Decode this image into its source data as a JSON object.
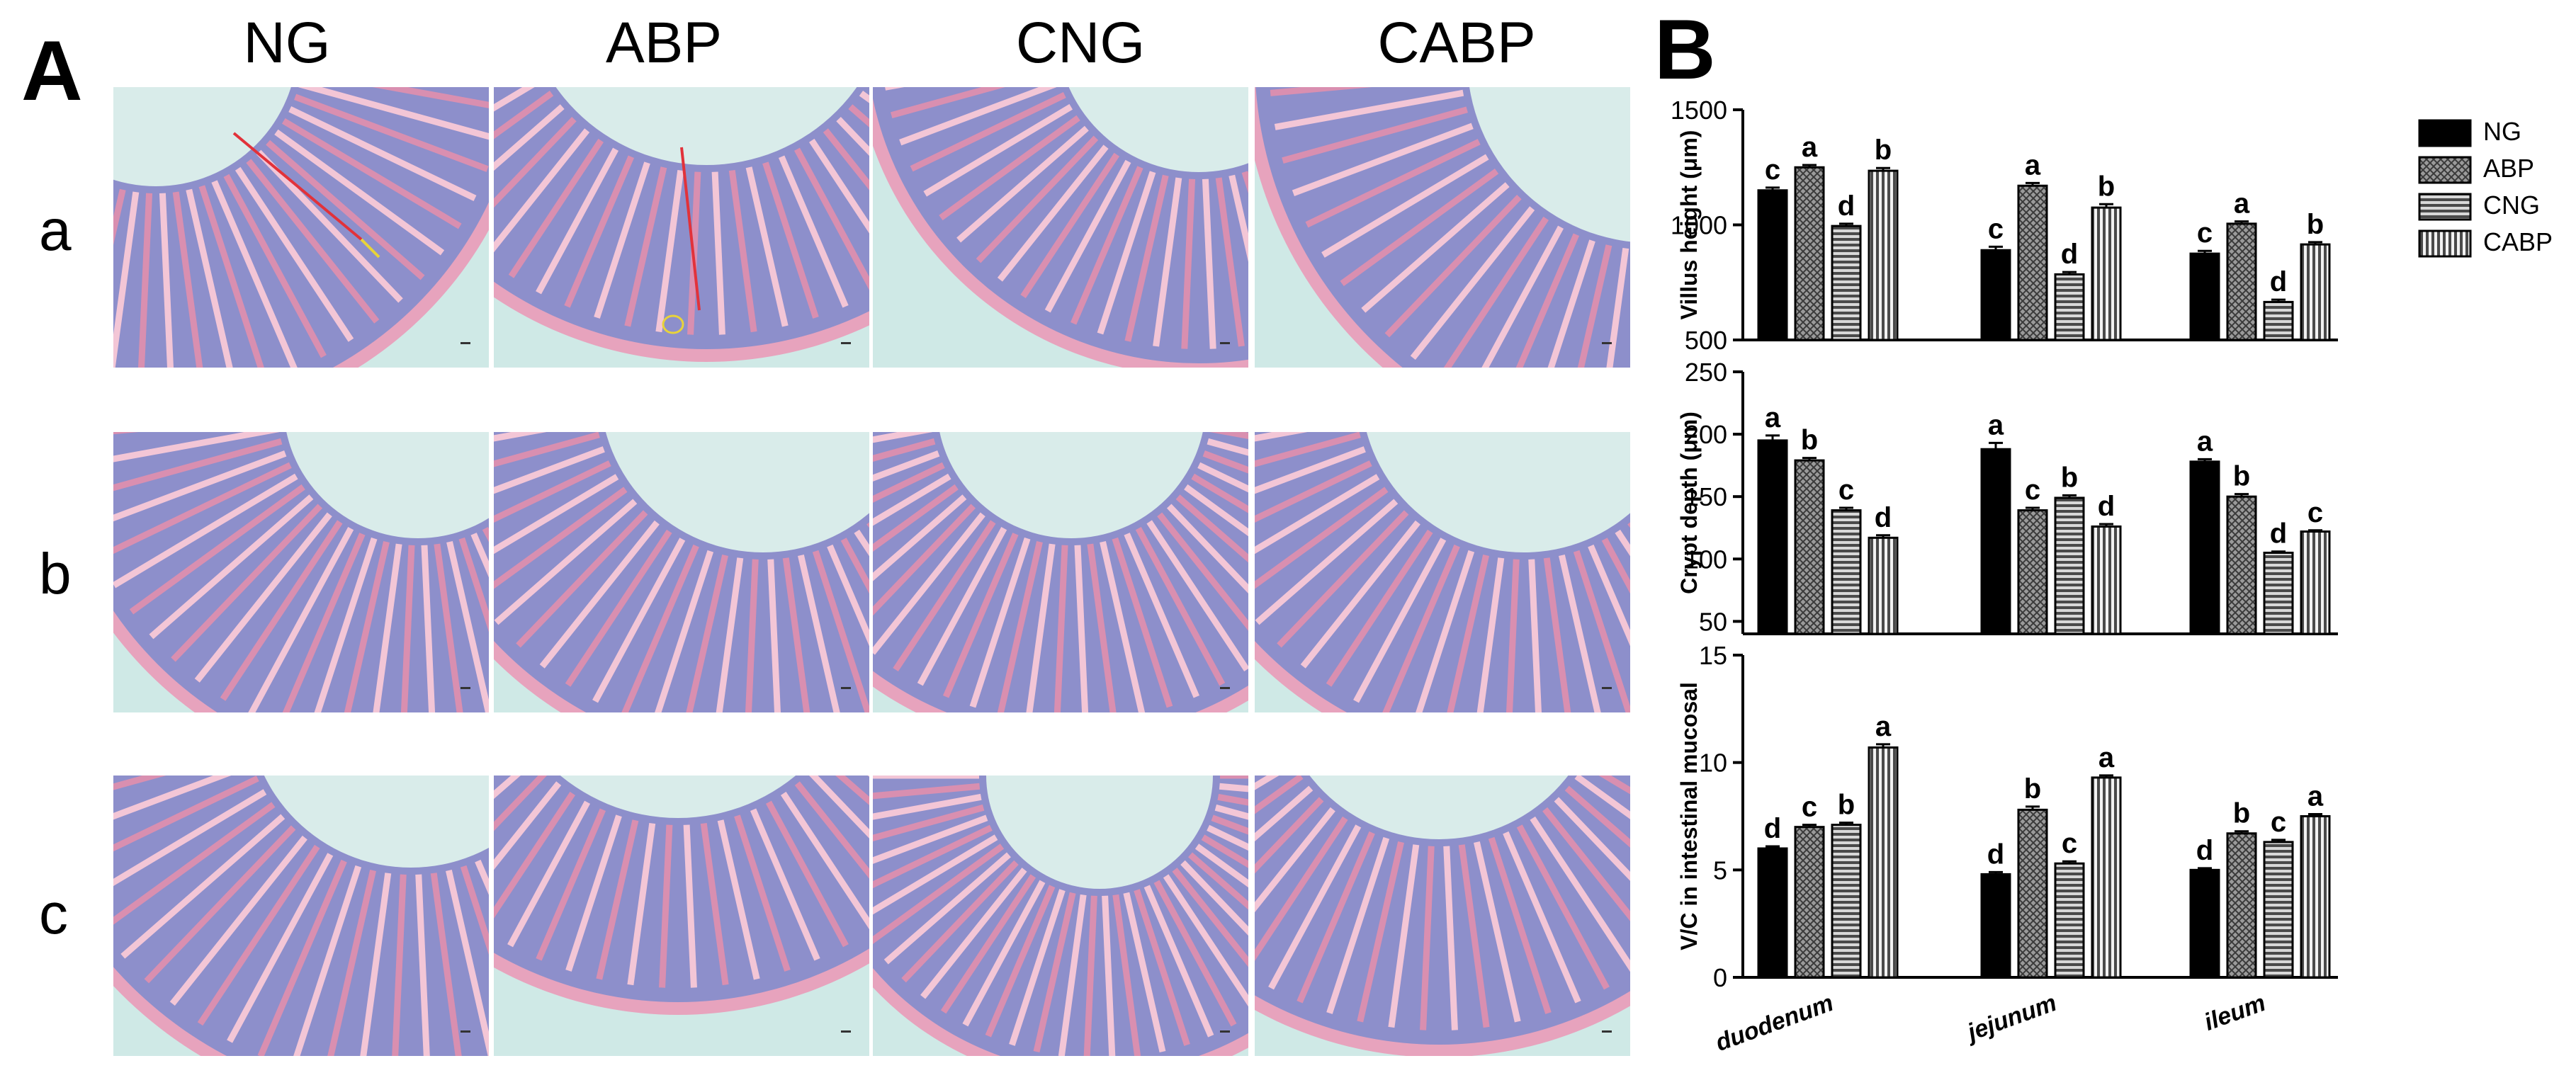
{
  "panel_a_label": "A",
  "panel_b_label": "B",
  "column_headers": [
    "NG",
    "ABP",
    "CNG",
    "CABP"
  ],
  "row_labels": [
    "a",
    "b",
    "c"
  ],
  "colors": {
    "tissue_pink": "#e7a3bd",
    "tissue_purple": "#8d8fcb",
    "background_teal": "#cfe9e6",
    "measure_red": "#e2323a",
    "measure_yellow": "#e8d33a"
  },
  "chart_data": [
    {
      "type": "bar",
      "categories": [
        "duodenum",
        "jejunum",
        "ileum"
      ],
      "ylabel": "Villus height (μm)",
      "ylim": [
        500,
        1500
      ],
      "yticks": [
        "500",
        "1000",
        "1500"
      ],
      "series": [
        {
          "name": "NG",
          "values": [
            1150,
            890,
            875
          ],
          "errors": [
            12,
            15,
            12
          ],
          "letters": [
            "c",
            "c",
            "c"
          ]
        },
        {
          "name": "ABP",
          "values": [
            1250,
            1170,
            1005
          ],
          "errors": [
            10,
            12,
            10
          ],
          "letters": [
            "a",
            "a",
            "a"
          ]
        },
        {
          "name": "CNG",
          "values": [
            995,
            785,
            665
          ],
          "errors": [
            10,
            10,
            10
          ],
          "letters": [
            "d",
            "d",
            "d"
          ]
        },
        {
          "name": "CABP",
          "values": [
            1235,
            1075,
            915
          ],
          "errors": [
            12,
            15,
            10
          ],
          "letters": [
            "b",
            "b",
            "b"
          ]
        }
      ]
    },
    {
      "type": "bar",
      "categories": [
        "duodenum",
        "jejunum",
        "ileum"
      ],
      "ylabel": "Crypt depth (μm)",
      "ylim": [
        40,
        250
      ],
      "yticks": [
        "50",
        "100",
        "150",
        "200",
        "250"
      ],
      "series": [
        {
          "name": "NG",
          "values": [
            195,
            188,
            178
          ],
          "errors": [
            4,
            5,
            2
          ],
          "letters": [
            "a",
            "a",
            "a"
          ]
        },
        {
          "name": "ABP",
          "values": [
            179,
            139,
            150
          ],
          "errors": [
            2,
            2,
            2
          ],
          "letters": [
            "b",
            "c",
            "b"
          ]
        },
        {
          "name": "CNG",
          "values": [
            139,
            149,
            105
          ],
          "errors": [
            2,
            2,
            1
          ],
          "letters": [
            "c",
            "b",
            "d"
          ]
        },
        {
          "name": "CABP",
          "values": [
            117,
            126,
            122
          ],
          "errors": [
            2,
            2,
            1
          ],
          "letters": [
            "d",
            "d",
            "c"
          ]
        }
      ]
    },
    {
      "type": "bar",
      "categories": [
        "duodenum",
        "jejunum",
        "ileum"
      ],
      "xticks": [
        "duodenum",
        "jejunum",
        "ileum"
      ],
      "ylabel": "V/C in intestinal mucosal",
      "ylim": [
        0,
        15
      ],
      "yticks": [
        "0",
        "5",
        "10",
        "15"
      ],
      "series": [
        {
          "name": "NG",
          "values": [
            6.0,
            4.8,
            5.0
          ],
          "errors": [
            0.1,
            0.1,
            0.08
          ],
          "letters": [
            "d",
            "d",
            "d"
          ]
        },
        {
          "name": "ABP",
          "values": [
            7.0,
            7.8,
            6.7
          ],
          "errors": [
            0.1,
            0.15,
            0.1
          ],
          "letters": [
            "c",
            "b",
            "b"
          ]
        },
        {
          "name": "CNG",
          "values": [
            7.1,
            5.3,
            6.3
          ],
          "errors": [
            0.1,
            0.1,
            0.1
          ],
          "letters": [
            "b",
            "c",
            "c"
          ]
        },
        {
          "name": "CABP",
          "values": [
            10.7,
            9.3,
            7.5
          ],
          "errors": [
            0.15,
            0.1,
            0.1
          ],
          "letters": [
            "a",
            "a",
            "a"
          ]
        }
      ]
    }
  ],
  "legend": {
    "placement": "top-right",
    "entries": [
      {
        "name": "NG",
        "pattern": "solid-black"
      },
      {
        "name": "ABP",
        "pattern": "crosshatch-gray"
      },
      {
        "name": "CNG",
        "pattern": "horizontal-lines"
      },
      {
        "name": "CABP",
        "pattern": "vertical-lines"
      }
    ]
  }
}
